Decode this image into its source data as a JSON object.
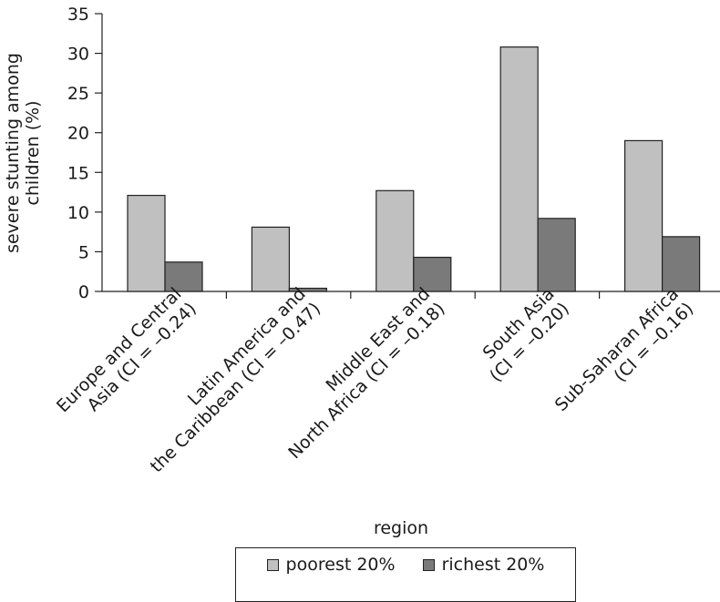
{
  "chart_data": {
    "type": "bar",
    "categories": [
      [
        "Europe and Central",
        "Asia (CI = –0.24)"
      ],
      [
        "Latin America and",
        "the Caribbean (CI = –0.47)"
      ],
      [
        "Middle East and",
        "North Africa (CI = –0.18)"
      ],
      [
        "South Asia",
        "(CI = –0.20)"
      ],
      [
        "Sub-Saharan Africa",
        "(CI = –0.16)"
      ]
    ],
    "series": [
      {
        "name": "poorest 20%",
        "color": "#c0c0c0",
        "values": [
          12.1,
          8.1,
          12.7,
          30.8,
          19.0
        ]
      },
      {
        "name": "richest 20%",
        "color": "#7a7a7a",
        "values": [
          3.7,
          0.4,
          4.3,
          9.2,
          6.9
        ]
      }
    ],
    "xlabel": "region",
    "ylabel": [
      "severe stunting among",
      "children (%)"
    ],
    "ylim": [
      0,
      35
    ],
    "yticks": [
      0,
      5,
      10,
      15,
      20,
      25,
      30,
      35
    ],
    "grid": false,
    "legend_position": "bottom"
  }
}
